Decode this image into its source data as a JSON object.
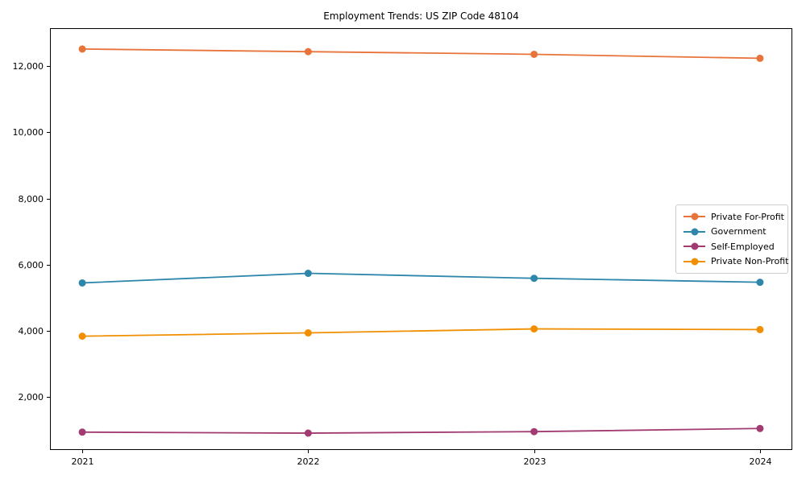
{
  "chart_data": {
    "type": "line",
    "title": "Employment Trends: US ZIP Code 48104",
    "xlabel": "",
    "ylabel": "",
    "categories": [
      "2021",
      "2022",
      "2023",
      "2024"
    ],
    "x_numeric": [
      2021,
      2022,
      2023,
      2024
    ],
    "series": [
      {
        "name": "Private For-Profit",
        "color": "#E8743B",
        "values": [
          12520,
          12440,
          12360,
          12240
        ]
      },
      {
        "name": "Government",
        "color": "#2E86AB",
        "values": [
          5450,
          5740,
          5590,
          5470
        ]
      },
      {
        "name": "Self-Employed",
        "color": "#A23B72",
        "values": [
          940,
          910,
          955,
          1050
        ]
      },
      {
        "name": "Private Non-Profit",
        "color": "#F18F01",
        "values": [
          3840,
          3940,
          4060,
          4040
        ]
      }
    ],
    "yticks": [
      2000,
      4000,
      6000,
      8000,
      10000,
      12000
    ],
    "ytick_labels": [
      "2,000",
      "4,000",
      "6,000",
      "8,000",
      "10,000",
      "12,000"
    ],
    "ylim": [
      400,
      13150
    ],
    "xlim": [
      2020.857,
      2024.143
    ],
    "grid": false,
    "legend_position": "center right",
    "marker": "circle",
    "axis_color": "#000000",
    "background_color": "#ffffff"
  }
}
